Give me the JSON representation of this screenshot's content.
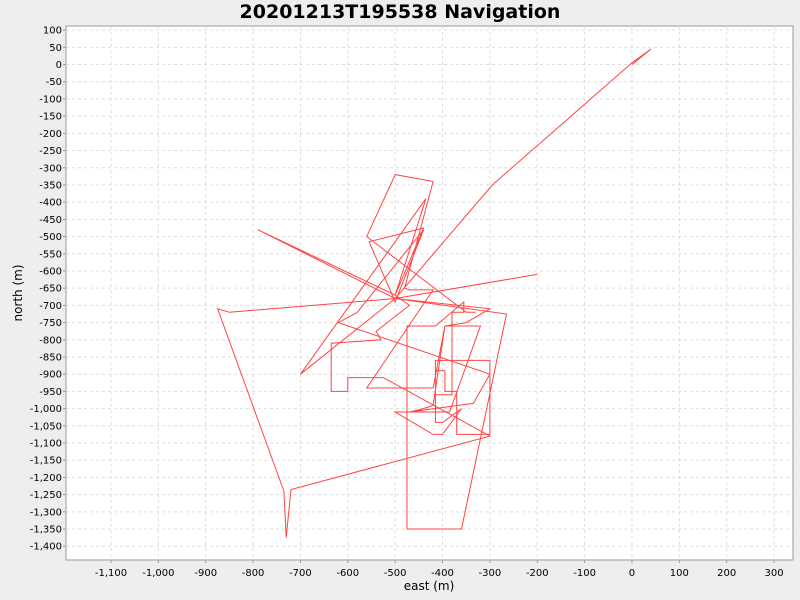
{
  "chart_data": {
    "type": "line",
    "title": "20201213T195538 Navigation",
    "xlabel": "east (m)",
    "ylabel": "north (m)",
    "xlim": [
      -1195,
      340
    ],
    "ylim": [
      -1440,
      112
    ],
    "grid": true,
    "x_ticks": [
      -1100,
      -1000,
      -900,
      -800,
      -700,
      -600,
      -500,
      -400,
      -300,
      -200,
      -100,
      0,
      100,
      200,
      300
    ],
    "y_ticks": [
      100,
      50,
      0,
      -50,
      -100,
      -150,
      -200,
      -250,
      -300,
      -350,
      -400,
      -450,
      -500,
      -550,
      -600,
      -650,
      -700,
      -750,
      -800,
      -850,
      -900,
      -950,
      -1000,
      -1050,
      -1100,
      -1150,
      -1200,
      -1250,
      -1300,
      -1350,
      -1400
    ],
    "colors": {
      "series": "#ff4444"
    },
    "series": [
      {
        "x": [
          0,
          40,
          0,
          -295,
          -500,
          -300,
          -350,
          -395,
          -420,
          -440,
          -470,
          -335,
          -300,
          -620,
          -580,
          -440,
          -500,
          -555,
          -440,
          -500,
          -470,
          -540,
          -530,
          -635,
          -635,
          -600,
          -600,
          -525,
          -300,
          -720,
          -730,
          -735,
          -875,
          -850,
          -500,
          -700,
          -435,
          -500,
          -790,
          -500,
          -200,
          -500,
          -265,
          -360,
          -475,
          -475,
          -415,
          -355,
          -355,
          -380,
          -380,
          -415,
          -415,
          -300,
          -300,
          -370,
          -370,
          -395,
          -395,
          -415,
          -415,
          -400,
          -360,
          -360,
          -400,
          -420,
          -500,
          -385,
          -320,
          -395,
          -420,
          -560,
          -420,
          -470,
          -480,
          -420,
          -500,
          -560,
          -350,
          -330
        ],
        "y": [
          0,
          45,
          5,
          -350,
          -680,
          -710,
          -750,
          -760,
          -990,
          -1000,
          -1010,
          -985,
          -900,
          -750,
          -720,
          -480,
          -690,
          -515,
          -475,
          -670,
          -700,
          -775,
          -800,
          -810,
          -950,
          -950,
          -910,
          -910,
          -1080,
          -1235,
          -1375,
          -1240,
          -710,
          -720,
          -680,
          -900,
          -390,
          -670,
          -480,
          -680,
          -610,
          -680,
          -725,
          -1350,
          -1350,
          -760,
          -760,
          -690,
          -720,
          -720,
          -960,
          -960,
          -860,
          -860,
          -1075,
          -1075,
          -950,
          -950,
          -890,
          -890,
          -1040,
          -1040,
          -1000,
          -1000,
          -1075,
          -1075,
          -1010,
          -1010,
          -760,
          -760,
          -940,
          -940,
          -655,
          -655,
          -650,
          -340,
          -320,
          -500,
          -720,
          -720
        ]
      }
    ]
  }
}
